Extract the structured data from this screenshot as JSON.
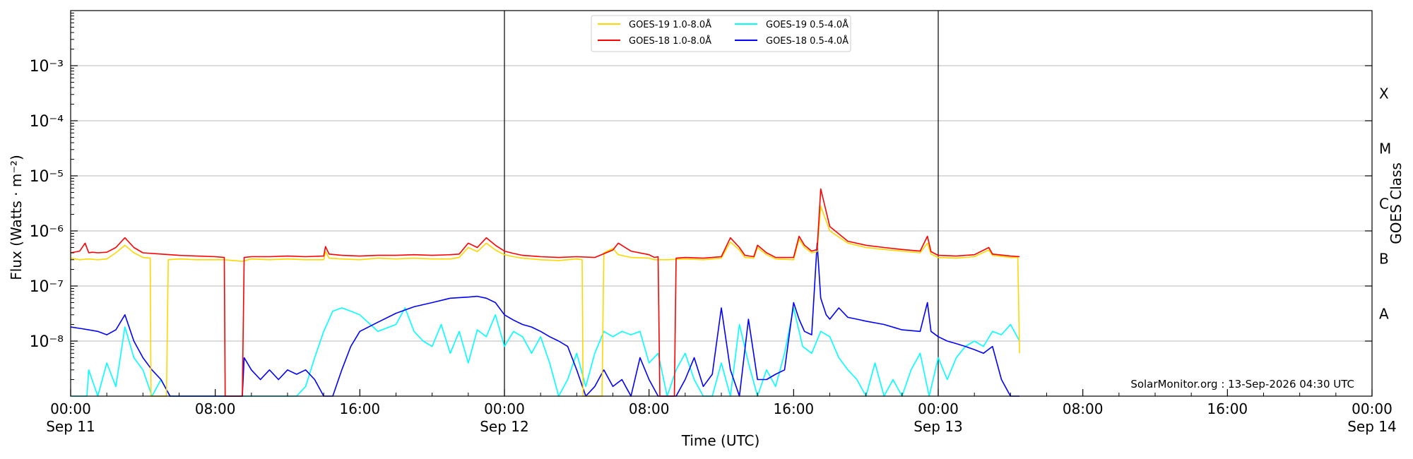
{
  "chart_data": {
    "type": "line",
    "title": "",
    "xlabel": "Time (UTC)",
    "ylabel": "Flux (Watts · m⁻²)",
    "y2label": "GOES Class",
    "yscale": "log",
    "ylim": [
      1e-09,
      0.01
    ],
    "yticks": [
      {
        "value": 1e-08,
        "label": "10⁻⁸"
      },
      {
        "value": 1e-07,
        "label": "10⁻⁷"
      },
      {
        "value": 1e-06,
        "label": "10⁻⁶"
      },
      {
        "value": 1e-05,
        "label": "10⁻⁵"
      },
      {
        "value": 0.0001,
        "label": "10⁻⁴"
      },
      {
        "value": 0.001,
        "label": "10⁻³"
      }
    ],
    "goes_classes": [
      {
        "label": "A",
        "value": 3.2e-08
      },
      {
        "label": "B",
        "value": 3.2e-07
      },
      {
        "label": "C",
        "value": 3.2e-06
      },
      {
        "label": "M",
        "value": 3.2e-05
      },
      {
        "label": "X",
        "value": 0.00032
      }
    ],
    "xlim": [
      0,
      72
    ],
    "x_unit": "hours after Sep 11 00:00 UTC",
    "xticks": [
      {
        "value": 0,
        "time": "00:00",
        "date": "Sep 11"
      },
      {
        "value": 8,
        "time": "08:00",
        "date": ""
      },
      {
        "value": 16,
        "time": "16:00",
        "date": ""
      },
      {
        "value": 24,
        "time": "00:00",
        "date": "Sep 12"
      },
      {
        "value": 32,
        "time": "08:00",
        "date": ""
      },
      {
        "value": 40,
        "time": "16:00",
        "date": ""
      },
      {
        "value": 48,
        "time": "00:00",
        "date": "Sep 13"
      },
      {
        "value": 56,
        "time": "08:00",
        "date": ""
      },
      {
        "value": 64,
        "time": "16:00",
        "date": ""
      },
      {
        "value": 72,
        "time": "00:00",
        "date": "Sep 14"
      }
    ],
    "day_boundaries": [
      24,
      48
    ],
    "grid": "horizontal",
    "legend_position": "top-center",
    "annotation": "SolarMonitor.org : 13-Sep-2026 04:30 UTC",
    "series": [
      {
        "name": "GOES-19 1.0-8.0Å",
        "color": "#ffd700",
        "x": [
          0,
          0.5,
          1,
          1.5,
          2,
          2.5,
          3,
          3.5,
          4,
          4.4,
          4.45,
          5.3,
          5.4,
          6,
          7,
          8,
          8.5,
          9,
          9.5,
          10,
          11,
          12,
          13,
          14,
          14.1,
          14.3,
          15,
          16,
          17,
          18,
          19,
          20,
          21,
          21.5,
          22,
          22.5,
          23,
          23.5,
          24,
          24.5,
          25,
          26,
          27,
          28,
          28.3,
          28.35,
          29.4,
          29.5,
          30,
          30.3,
          31,
          32,
          32.3,
          33,
          34,
          35,
          36,
          36.5,
          37,
          37.3,
          37.8,
          38,
          38.5,
          39,
          40,
          40.3,
          40.6,
          41,
          41.3,
          41.5,
          42,
          43,
          44,
          45,
          46,
          47,
          47.4,
          47.6,
          48,
          49,
          50,
          50.8,
          51,
          52,
          52.4,
          52.5
        ],
        "y": [
          3.2e-07,
          3e-07,
          3.1e-07,
          3e-07,
          3.1e-07,
          4e-07,
          5.5e-07,
          4e-07,
          3.3e-07,
          3.2e-07,
          1e-09,
          1e-09,
          3e-07,
          3.1e-07,
          3e-07,
          3e-07,
          3e-07,
          2.9e-07,
          2.8e-07,
          3.1e-07,
          3e-07,
          3.1e-07,
          3e-07,
          3e-07,
          4.2e-07,
          3.2e-07,
          3.1e-07,
          3e-07,
          3.2e-07,
          3.1e-07,
          3.2e-07,
          3.1e-07,
          3.1e-07,
          3.3e-07,
          5e-07,
          4.2e-07,
          6e-07,
          4.5e-07,
          3.7e-07,
          3.4e-07,
          3.2e-07,
          3e-07,
          2.9e-07,
          3.1e-07,
          3e-07,
          1e-09,
          1e-09,
          4e-07,
          4.8e-07,
          3.7e-07,
          3.3e-07,
          3.2e-07,
          3e-07,
          3e-07,
          3.1e-07,
          3e-07,
          3.2e-07,
          6.3e-07,
          4.5e-07,
          3.3e-07,
          3.2e-07,
          5e-07,
          3.7e-07,
          3.1e-07,
          3e-07,
          7e-07,
          5e-07,
          4e-07,
          4.2e-07,
          2.8e-06,
          1e-06,
          6e-07,
          5e-07,
          4.6e-07,
          4.3e-07,
          4e-07,
          6e-07,
          3.8e-07,
          3.3e-07,
          3.2e-07,
          3.4e-07,
          4.5e-07,
          3.6e-07,
          3.3e-07,
          3.3e-07,
          6e-09
        ]
      },
      {
        "name": "GOES-18 1.0-8.0Å",
        "color": "#ff0000",
        "x": [
          0,
          0.5,
          0.8,
          1,
          1.2,
          1.5,
          2,
          2.5,
          3,
          3.5,
          4,
          5,
          6,
          7,
          8,
          8.5,
          8.55,
          9.5,
          9.6,
          10,
          11,
          12,
          13,
          14,
          14.1,
          14.3,
          15,
          16,
          17,
          18,
          19,
          20,
          21,
          21.5,
          22,
          22.5,
          23,
          23.5,
          24,
          24.5,
          25,
          26,
          27,
          28,
          29,
          30,
          30.3,
          31,
          32,
          32.3,
          32.5,
          32.6,
          33.4,
          33.5,
          34,
          35,
          36,
          36.5,
          37,
          37.3,
          37.8,
          38,
          38.5,
          39,
          40,
          40.3,
          40.6,
          41,
          41.3,
          41.5,
          42,
          43,
          44,
          45,
          46,
          47,
          47.4,
          47.6,
          48,
          49,
          50,
          50.8,
          51,
          52,
          52.5
        ],
        "y": [
          4e-07,
          4.3e-07,
          6e-07,
          4e-07,
          4.1e-07,
          4e-07,
          4.1e-07,
          5e-07,
          7.5e-07,
          5e-07,
          4e-07,
          3.8e-07,
          3.6e-07,
          3.5e-07,
          3.4e-07,
          3.3e-07,
          1e-09,
          1e-09,
          3.3e-07,
          3.4e-07,
          3.4e-07,
          3.5e-07,
          3.4e-07,
          3.5e-07,
          5.2e-07,
          3.8e-07,
          3.6e-07,
          3.5e-07,
          3.6e-07,
          3.6e-07,
          3.7e-07,
          3.6e-07,
          3.7e-07,
          3.8e-07,
          6e-07,
          5e-07,
          7.5e-07,
          5.5e-07,
          4.3e-07,
          3.9e-07,
          3.6e-07,
          3.4e-07,
          3.3e-07,
          3.4e-07,
          3.3e-07,
          4.5e-07,
          6e-07,
          4.3e-07,
          3.7e-07,
          3.3e-07,
          3.4e-07,
          1e-09,
          1e-09,
          3.2e-07,
          3.3e-07,
          3.2e-07,
          3.4e-07,
          7.5e-07,
          5e-07,
          3.6e-07,
          3.4e-07,
          5.5e-07,
          4e-07,
          3.3e-07,
          3.3e-07,
          8e-07,
          5.5e-07,
          4.3e-07,
          4.6e-07,
          5.8e-06,
          1.2e-06,
          6.5e-07,
          5.5e-07,
          5e-07,
          4.6e-07,
          4.3e-07,
          8e-07,
          4.2e-07,
          3.6e-07,
          3.5e-07,
          3.7e-07,
          5e-07,
          3.8e-07,
          3.5e-07,
          3.4e-07
        ]
      },
      {
        "name": "GOES-19 0.5-4.0Å",
        "color": "#00ffff",
        "x": [
          0,
          0.9,
          1,
          1.5,
          2,
          2.5,
          3,
          3.5,
          4,
          4.5,
          5,
          5.5,
          6,
          7,
          8,
          9,
          10,
          11,
          12,
          12.5,
          13,
          13.5,
          14,
          14.5,
          15,
          15.5,
          16,
          17,
          18,
          18.5,
          19,
          19.5,
          20,
          20.5,
          21,
          21.5,
          22,
          22.5,
          23,
          23.5,
          24,
          24.5,
          25,
          25.5,
          26,
          26.5,
          27,
          27.5,
          28,
          28.5,
          29,
          29.5,
          30,
          30.5,
          31,
          31.5,
          32,
          32.5,
          33,
          33.5,
          34,
          34.5,
          35,
          35.5,
          36,
          36.5,
          37,
          37.5,
          38,
          38.5,
          39,
          39.5,
          40,
          40.5,
          41,
          41.5,
          42,
          42.5,
          43,
          43.5,
          44,
          44.5,
          45,
          45.5,
          46,
          46.5,
          47,
          47.5,
          48,
          48.5,
          49,
          49.5,
          50,
          50.5,
          51,
          51.5,
          52,
          52.5
        ],
        "y": [
          1e-09,
          1e-09,
          3e-09,
          1e-09,
          4e-09,
          1.5e-09,
          1.8e-08,
          5e-09,
          3e-09,
          1e-09,
          2e-09,
          1e-09,
          1e-09,
          1e-09,
          1e-09,
          1e-09,
          1e-09,
          1e-09,
          1e-09,
          1e-09,
          1.5e-09,
          5e-09,
          1.5e-08,
          3.5e-08,
          4e-08,
          3.5e-08,
          3e-08,
          1.5e-08,
          2e-08,
          4e-08,
          1.5e-08,
          1e-08,
          8e-09,
          2e-08,
          6e-09,
          1.5e-08,
          4e-09,
          1.6e-08,
          1.2e-08,
          3e-08,
          8e-09,
          1.5e-08,
          1.2e-08,
          6e-09,
          1.2e-08,
          4e-09,
          1e-09,
          2e-09,
          6e-09,
          1.5e-09,
          6e-09,
          1.5e-08,
          1.2e-08,
          1.5e-08,
          1.3e-08,
          1.5e-08,
          4e-09,
          6e-09,
          1e-09,
          3e-09,
          6e-09,
          2e-09,
          1e-09,
          1e-09,
          4e-09,
          1e-09,
          2e-08,
          4e-09,
          1e-09,
          3e-09,
          1.5e-09,
          6e-09,
          4e-08,
          8e-09,
          6e-09,
          1.5e-08,
          1.2e-08,
          5e-09,
          3e-09,
          2e-09,
          1e-09,
          4e-09,
          1e-09,
          2e-09,
          1e-09,
          3e-09,
          6e-09,
          1e-09,
          5e-09,
          2e-09,
          5e-09,
          8e-09,
          1e-08,
          8e-09,
          1.5e-08,
          1.3e-08,
          2e-08,
          1e-08
        ]
      },
      {
        "name": "GOES-18 0.5-4.0Å",
        "color": "#0000ff",
        "x": [
          0,
          0.5,
          1,
          1.5,
          2,
          2.5,
          3,
          3.5,
          4,
          4.5,
          5,
          5.5,
          6,
          6.5,
          7,
          7.5,
          8,
          8.5,
          9,
          9.5,
          9.6,
          10,
          10.5,
          11,
          11.5,
          12,
          12.5,
          13,
          13.5,
          14,
          14.5,
          15,
          15.5,
          16,
          17,
          18,
          19,
          20,
          21,
          22,
          22.5,
          23,
          23.5,
          24,
          24.5,
          25,
          25.5,
          26,
          26.5,
          27,
          27.5,
          28,
          28.5,
          29,
          29.5,
          30,
          30.5,
          31,
          31.5,
          32,
          32.5,
          33,
          33.5,
          34,
          34.5,
          35,
          35.5,
          36,
          36.5,
          37,
          37.5,
          38,
          38.5,
          39,
          39.5,
          40,
          40.3,
          40.6,
          41,
          41.3,
          41.5,
          41.8,
          42,
          42.5,
          43,
          43.5,
          44,
          45,
          46,
          47,
          47.4,
          47.6,
          48,
          48.5,
          49,
          49.5,
          50,
          50.5,
          51,
          51.5,
          52,
          52.5
        ],
        "y": [
          1.8e-08,
          1.7e-08,
          1.6e-08,
          1.5e-08,
          1.3e-08,
          1.6e-08,
          3e-08,
          1e-08,
          5e-09,
          3e-09,
          2e-09,
          1e-09,
          1e-09,
          1e-09,
          1e-09,
          1e-09,
          1e-09,
          1e-09,
          1e-09,
          1e-09,
          5e-09,
          3e-09,
          2e-09,
          3e-09,
          2e-09,
          3e-09,
          2.5e-09,
          3e-09,
          2e-09,
          1e-09,
          1e-09,
          3e-09,
          8e-09,
          1.5e-08,
          2.2e-08,
          3.2e-08,
          4.2e-08,
          5e-08,
          6e-08,
          6.3e-08,
          6.5e-08,
          6e-08,
          5e-08,
          3e-08,
          2.4e-08,
          2e-08,
          1.8e-08,
          1.5e-08,
          1.2e-08,
          1e-08,
          8e-09,
          3e-09,
          1e-09,
          1.5e-09,
          3e-09,
          1.5e-09,
          2e-09,
          1e-09,
          5e-09,
          2e-09,
          1e-09,
          1e-09,
          1e-09,
          2e-09,
          5e-09,
          1.5e-09,
          2.5e-09,
          4e-08,
          3e-09,
          1e-09,
          2.5e-08,
          2e-09,
          2e-09,
          2.5e-09,
          3e-09,
          5e-08,
          2.5e-08,
          1.5e-08,
          1.3e-08,
          6e-07,
          6e-08,
          3e-08,
          2.5e-08,
          4e-08,
          2.7e-08,
          2.5e-08,
          2.3e-08,
          2e-08,
          1.6e-08,
          1.5e-08,
          5e-08,
          1.5e-08,
          1.2e-08,
          1e-08,
          9e-09,
          8e-09,
          7e-09,
          6e-09,
          8e-09,
          2e-09,
          1e-09,
          1e-09
        ]
      }
    ]
  }
}
